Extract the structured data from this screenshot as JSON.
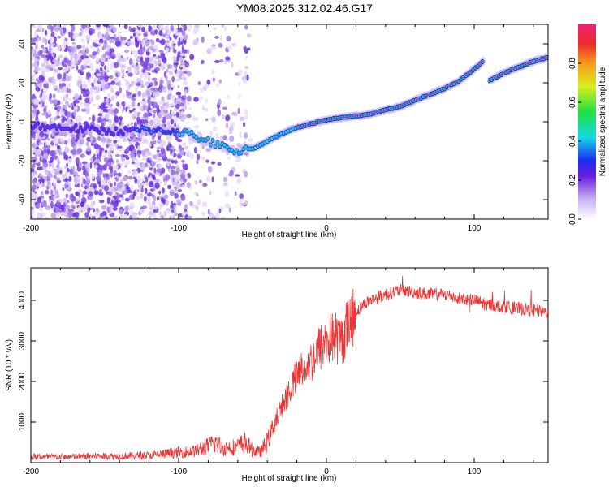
{
  "title": "YM08.2025.312.02.46.G17",
  "chart_data": [
    {
      "type": "heatmap",
      "name": "spectrogram",
      "xlabel": "Height of straight line (km)",
      "ylabel": "Frequency (Hz)",
      "xlim": [
        -200,
        150
      ],
      "ylim": [
        -50,
        50
      ],
      "xticks": [
        -200,
        -100,
        0,
        100
      ],
      "yticks": [
        -40,
        -20,
        0,
        20,
        40
      ],
      "ridge": {
        "description": "frequency ridge of peak spectral amplitude",
        "x": [
          -200,
          -180,
          -160,
          -140,
          -120,
          -100,
          -90,
          -80,
          -70,
          -60,
          -50,
          -40,
          -30,
          -20,
          -10,
          0,
          10,
          20,
          30,
          40,
          50,
          60,
          70,
          80,
          90,
          100,
          106,
          108,
          110,
          120,
          130,
          140,
          150
        ],
        "y": [
          -2,
          -3,
          -4,
          -5,
          -4,
          -5,
          -7,
          -10,
          -13,
          -15,
          -14,
          -10,
          -6,
          -3,
          -1,
          1,
          2,
          3,
          4,
          6,
          8,
          11,
          14,
          17,
          21,
          27,
          31,
          33,
          21,
          25,
          28,
          31,
          33
        ]
      },
      "colorbar": {
        "label": "Normalized spectral amplitude",
        "range": [
          0,
          1
        ],
        "ticks": [
          0.0,
          0.2,
          0.4,
          0.6,
          0.8
        ]
      }
    },
    {
      "type": "line",
      "name": "snr",
      "xlabel": "Height of straight line (km)",
      "ylabel": "SNR (10 * v/v)",
      "xlim": [
        -200,
        150
      ],
      "ylim": [
        0,
        4800
      ],
      "xticks": [
        -200,
        -100,
        0,
        100
      ],
      "yticks": [
        1000,
        2000,
        3000,
        4000
      ],
      "series": [
        {
          "name": "SNR",
          "color": "#ee3333",
          "x": [
            -200,
            -180,
            -160,
            -140,
            -120,
            -100,
            -90,
            -80,
            -75,
            -70,
            -60,
            -55,
            -50,
            -45,
            -40,
            -35,
            -30,
            -25,
            -20,
            -15,
            -10,
            -5,
            0,
            5,
            10,
            15,
            20,
            25,
            30,
            40,
            50,
            60,
            70,
            80,
            90,
            100,
            110,
            120,
            130,
            140,
            150
          ],
          "y": [
            150,
            140,
            160,
            160,
            180,
            250,
            280,
            400,
            500,
            350,
            400,
            500,
            300,
            250,
            500,
            1000,
            1400,
            1800,
            2100,
            2400,
            2500,
            2800,
            3000,
            3100,
            3000,
            3400,
            3700,
            3900,
            4000,
            4150,
            4250,
            4200,
            4150,
            4150,
            4050,
            4000,
            3900,
            3850,
            3800,
            3750,
            3700
          ]
        }
      ]
    }
  ]
}
